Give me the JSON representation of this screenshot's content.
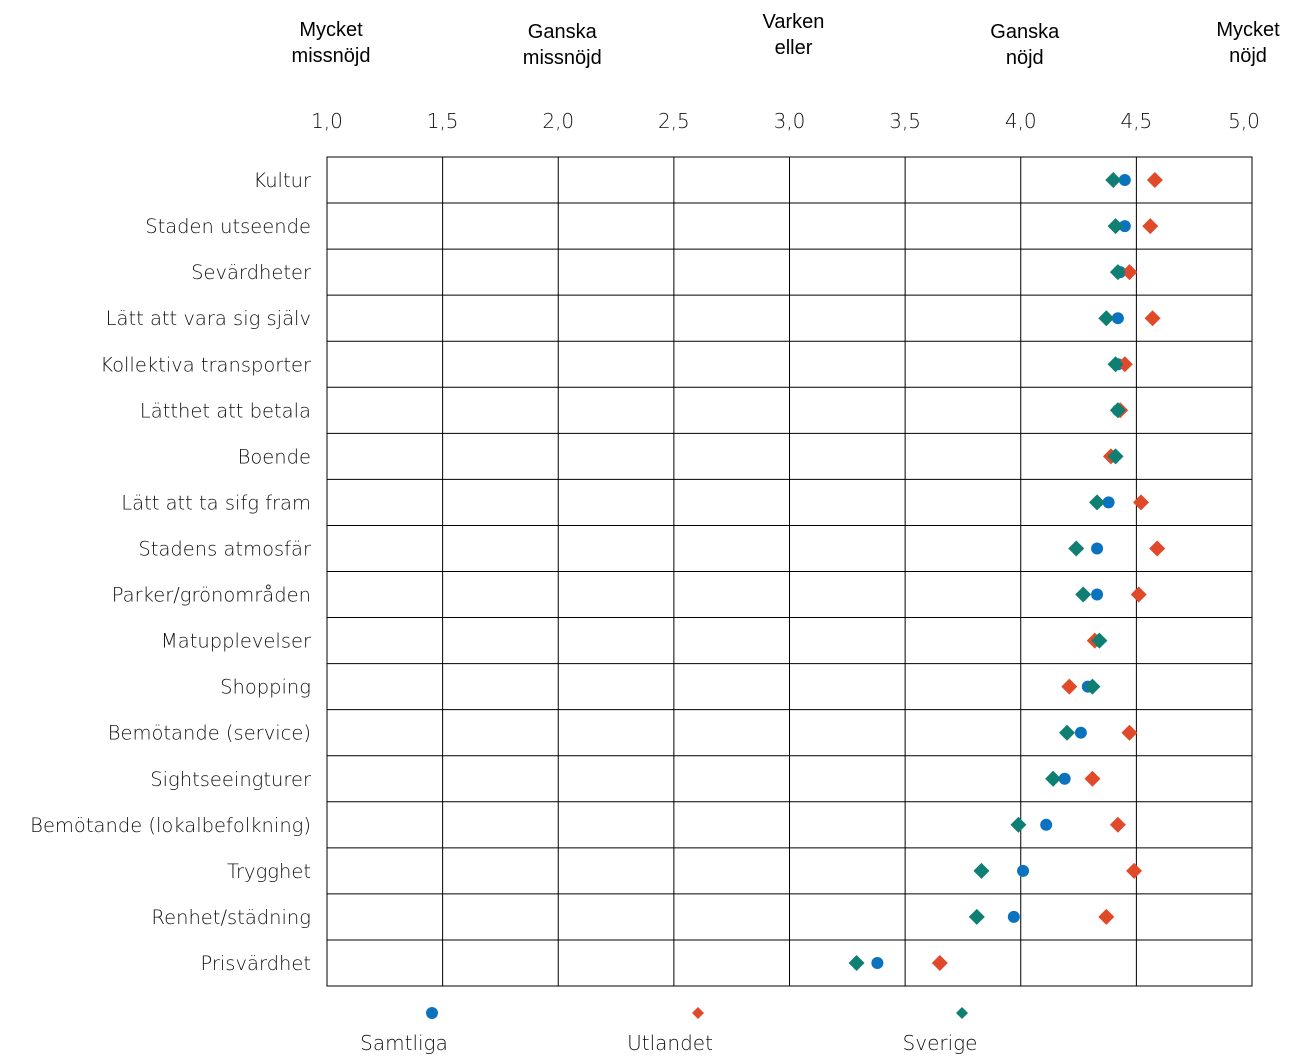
{
  "chart_data": {
    "type": "scatter",
    "title": "",
    "xlabel": "",
    "ylabel": "",
    "xlim": [
      1.0,
      5.0
    ],
    "x_ticks": [
      "1,0",
      "1,5",
      "2,0",
      "2,5",
      "3,0",
      "3,5",
      "4,0",
      "4,5",
      "5,0"
    ],
    "x_tick_values": [
      1.0,
      1.5,
      2.0,
      2.5,
      3.0,
      3.5,
      4.0,
      4.5,
      5.0
    ],
    "scale_labels": [
      {
        "x": 1.0,
        "lines": [
          "Mycket",
          "missnöjd"
        ]
      },
      {
        "x": 2.0,
        "lines": [
          "Ganska",
          "missnöjd"
        ]
      },
      {
        "x": 3.0,
        "lines": [
          "Varken",
          "eller"
        ]
      },
      {
        "x": 4.0,
        "lines": [
          "Ganska",
          "nöjd"
        ]
      },
      {
        "x": 5.0,
        "lines": [
          "Mycket",
          "nöjd"
        ]
      }
    ],
    "grid": true,
    "legend_position": "bottom",
    "categories": [
      "Kultur",
      "Staden utseende",
      "Sevärdheter",
      "Lätt att vara sig själv",
      "Kollektiva transporter",
      "Lätthet att betala",
      "Boende",
      "Lätt att ta sifg fram",
      "Stadens atmosfär",
      "Parker/grönområden",
      "Matupplevelser",
      "Shopping",
      "Bemötande (service)",
      "Sightseeingturer",
      "Bemötande (lokalbefolkning)",
      "Trygghet",
      "Renhet/städning",
      "Prisvärdhet"
    ],
    "series": [
      {
        "name": "Samtliga",
        "marker": "circle",
        "color": "#0b72c0",
        "values": [
          4.45,
          4.45,
          4.43,
          4.42,
          4.42,
          4.42,
          4.4,
          4.38,
          4.33,
          4.33,
          4.33,
          4.29,
          4.26,
          4.19,
          4.11,
          4.01,
          3.97,
          3.38
        ]
      },
      {
        "name": "Utlandet",
        "marker": "diamond",
        "color": "#e04a2a",
        "values": [
          4.58,
          4.56,
          4.47,
          4.57,
          4.45,
          4.43,
          4.39,
          4.52,
          4.59,
          4.51,
          4.32,
          4.21,
          4.47,
          4.31,
          4.42,
          4.49,
          4.37,
          3.65
        ]
      },
      {
        "name": "Sverige",
        "marker": "diamond",
        "color": "#0e7f72",
        "values": [
          4.4,
          4.41,
          4.42,
          4.37,
          4.41,
          4.42,
          4.41,
          4.33,
          4.24,
          4.27,
          4.34,
          4.31,
          4.2,
          4.14,
          3.99,
          3.83,
          3.81,
          3.29
        ]
      }
    ]
  }
}
